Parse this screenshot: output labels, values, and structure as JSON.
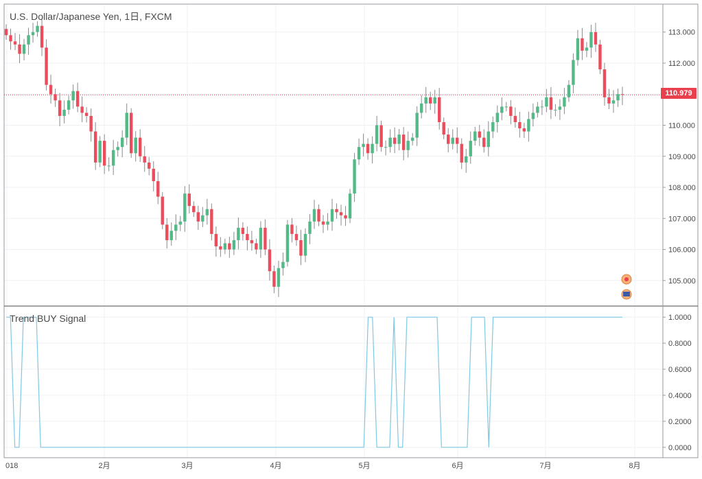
{
  "title": "U.S. Dollar/Japanese Yen, 1日, FXCM",
  "last_price_label": "110.979",
  "colors": {
    "up": "#53b987",
    "down": "#eb4d5c",
    "signal": "#7ec8e3",
    "grid": "#eef0f3",
    "last_price_line": "#c53a48"
  },
  "chart_data": [
    {
      "type": "candlestick",
      "title": "U.S. Dollar/Japanese Yen, 1日, FXCM",
      "y_ticks": [
        "105.000",
        "106.000",
        "107.000",
        "108.000",
        "109.000",
        "110.000",
        "111.000",
        "112.000",
        "113.000"
      ],
      "ylim": [
        104.2,
        113.9
      ],
      "x_tick_labels": [
        "018",
        "2月",
        "3月",
        "4月",
        "5月",
        "6月",
        "7月",
        "8月"
      ],
      "last_price": 110.979,
      "grid": true,
      "closes": [
        112.9,
        112.7,
        112.6,
        112.3,
        112.6,
        112.9,
        113.0,
        113.2,
        112.5,
        111.3,
        111.0,
        110.8,
        110.3,
        110.5,
        110.8,
        111.1,
        110.6,
        110.4,
        110.3,
        109.8,
        108.8,
        109.5,
        108.7,
        108.7,
        109.2,
        109.3,
        109.6,
        110.4,
        109.1,
        109.6,
        109.0,
        108.8,
        108.6,
        108.2,
        107.7,
        106.8,
        106.3,
        106.6,
        106.8,
        106.9,
        107.8,
        107.4,
        107.2,
        106.9,
        107.1,
        107.3,
        106.5,
        106.1,
        106.0,
        106.2,
        106.0,
        106.3,
        106.7,
        106.5,
        106.3,
        106.2,
        106.0,
        106.7,
        106.0,
        105.3,
        104.8,
        105.4,
        105.6,
        106.8,
        106.5,
        106.3,
        105.8,
        106.5,
        106.9,
        107.3,
        106.9,
        106.8,
        106.9,
        107.3,
        107.2,
        107.1,
        107.0,
        107.8,
        108.9,
        109.3,
        109.4,
        109.1,
        109.4,
        110.0,
        109.3,
        109.3,
        109.6,
        109.4,
        109.7,
        109.2,
        109.5,
        109.6,
        110.4,
        110.7,
        110.9,
        110.7,
        110.9,
        110.1,
        109.7,
        109.4,
        109.6,
        109.4,
        108.8,
        109.0,
        109.5,
        109.8,
        109.6,
        109.3,
        109.8,
        110.1,
        110.4,
        110.6,
        110.6,
        110.3,
        110.1,
        109.9,
        109.8,
        110.2,
        110.4,
        110.6,
        110.6,
        110.9,
        110.5,
        110.5,
        110.6,
        110.9,
        111.3,
        112.1,
        112.8,
        112.4,
        112.5,
        113.0,
        112.6,
        111.8,
        110.9,
        110.7,
        110.8,
        111.0,
        110.979
      ],
      "signal": {
        "name": "Trend BUY Signal",
        "y_ticks": [
          "0.0000",
          "0.2000",
          "0.4000",
          "0.6000",
          "0.8000",
          "1.0000"
        ],
        "ylim": [
          -0.08,
          1.08
        ],
        "values": [
          1,
          1,
          0,
          0,
          1,
          1,
          1,
          1,
          0,
          0,
          0,
          0,
          0,
          0,
          0,
          0,
          0,
          0,
          0,
          0,
          0,
          0,
          0,
          0,
          0,
          0,
          0,
          0,
          0,
          0,
          0,
          0,
          0,
          0,
          0,
          0,
          0,
          0,
          0,
          0,
          0,
          0,
          0,
          0,
          0,
          0,
          0,
          0,
          0,
          0,
          0,
          0,
          0,
          0,
          0,
          0,
          0,
          0,
          0,
          0,
          0,
          0,
          0,
          0,
          0,
          0,
          0,
          0,
          0,
          0,
          0,
          0,
          0,
          0,
          0,
          0,
          0,
          0,
          0,
          0,
          0,
          0,
          0,
          0,
          1,
          1,
          0,
          0,
          0,
          0,
          1,
          0,
          0,
          1,
          1,
          1,
          1,
          1,
          1,
          1,
          1,
          0,
          0,
          0,
          0,
          0,
          0,
          0,
          1,
          1,
          1,
          1,
          0,
          1,
          1,
          1,
          1,
          1,
          1,
          1,
          1,
          1,
          1,
          1,
          1,
          1,
          1,
          1,
          1,
          1,
          1,
          1,
          1,
          1,
          1,
          1,
          1,
          1,
          1,
          1,
          1,
          1,
          1,
          1
        ]
      }
    }
  ]
}
